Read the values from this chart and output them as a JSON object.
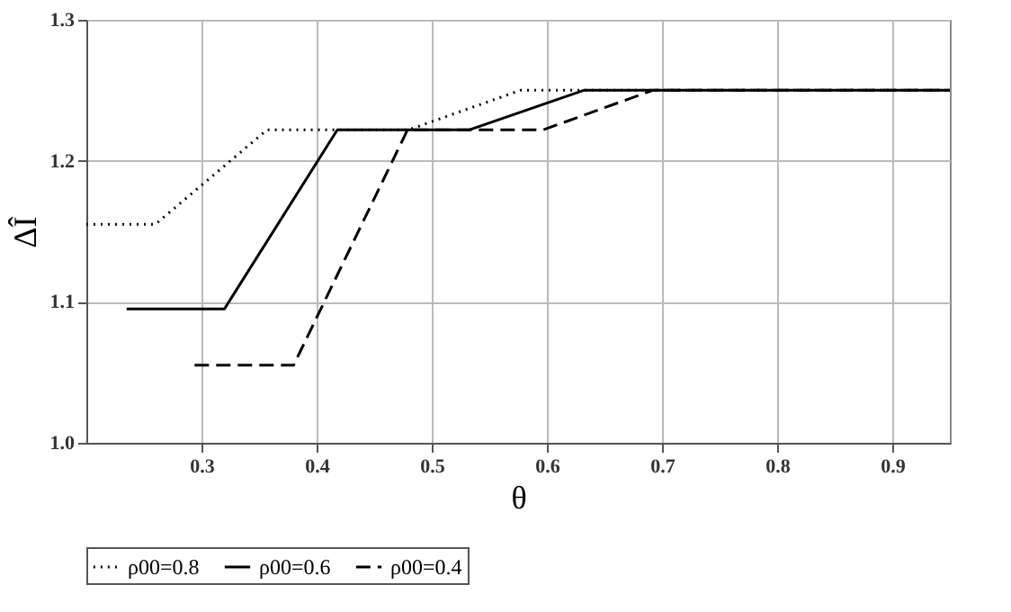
{
  "chart_data": {
    "type": "line",
    "xlabel": "θ",
    "ylabel": "ΔÎ",
    "xlim": [
      0.2,
      0.95
    ],
    "ylim": [
      1.0,
      1.3
    ],
    "xticks": [
      0.3,
      0.4,
      0.5,
      0.6,
      0.7,
      0.8,
      0.9
    ],
    "yticks": [
      {
        "value": 1.0,
        "label": "1.0"
      },
      1.1,
      1.2,
      1.3
    ],
    "grid": true,
    "legend": "bottom",
    "series": [
      {
        "name": "ρ00=0.8",
        "color": "#000000",
        "line_style": "dotted",
        "x": [
          0.2,
          0.26,
          0.357,
          0.48,
          0.577,
          0.95
        ],
        "values": [
          1.155,
          1.155,
          1.222,
          1.222,
          1.25,
          1.25
        ]
      },
      {
        "name": "ρ00=0.6",
        "color": "#000000",
        "line_style": "solid",
        "x": [
          0.235,
          0.32,
          0.418,
          0.533,
          0.632,
          0.95
        ],
        "values": [
          1.095,
          1.095,
          1.222,
          1.222,
          1.25,
          1.25
        ]
      },
      {
        "name": "ρ00=0.4",
        "color": "#000000",
        "line_style": "dashed",
        "x": [
          0.294,
          0.38,
          0.479,
          0.597,
          0.692,
          0.95
        ],
        "values": [
          1.055,
          1.055,
          1.222,
          1.222,
          1.25,
          1.25
        ]
      }
    ]
  }
}
